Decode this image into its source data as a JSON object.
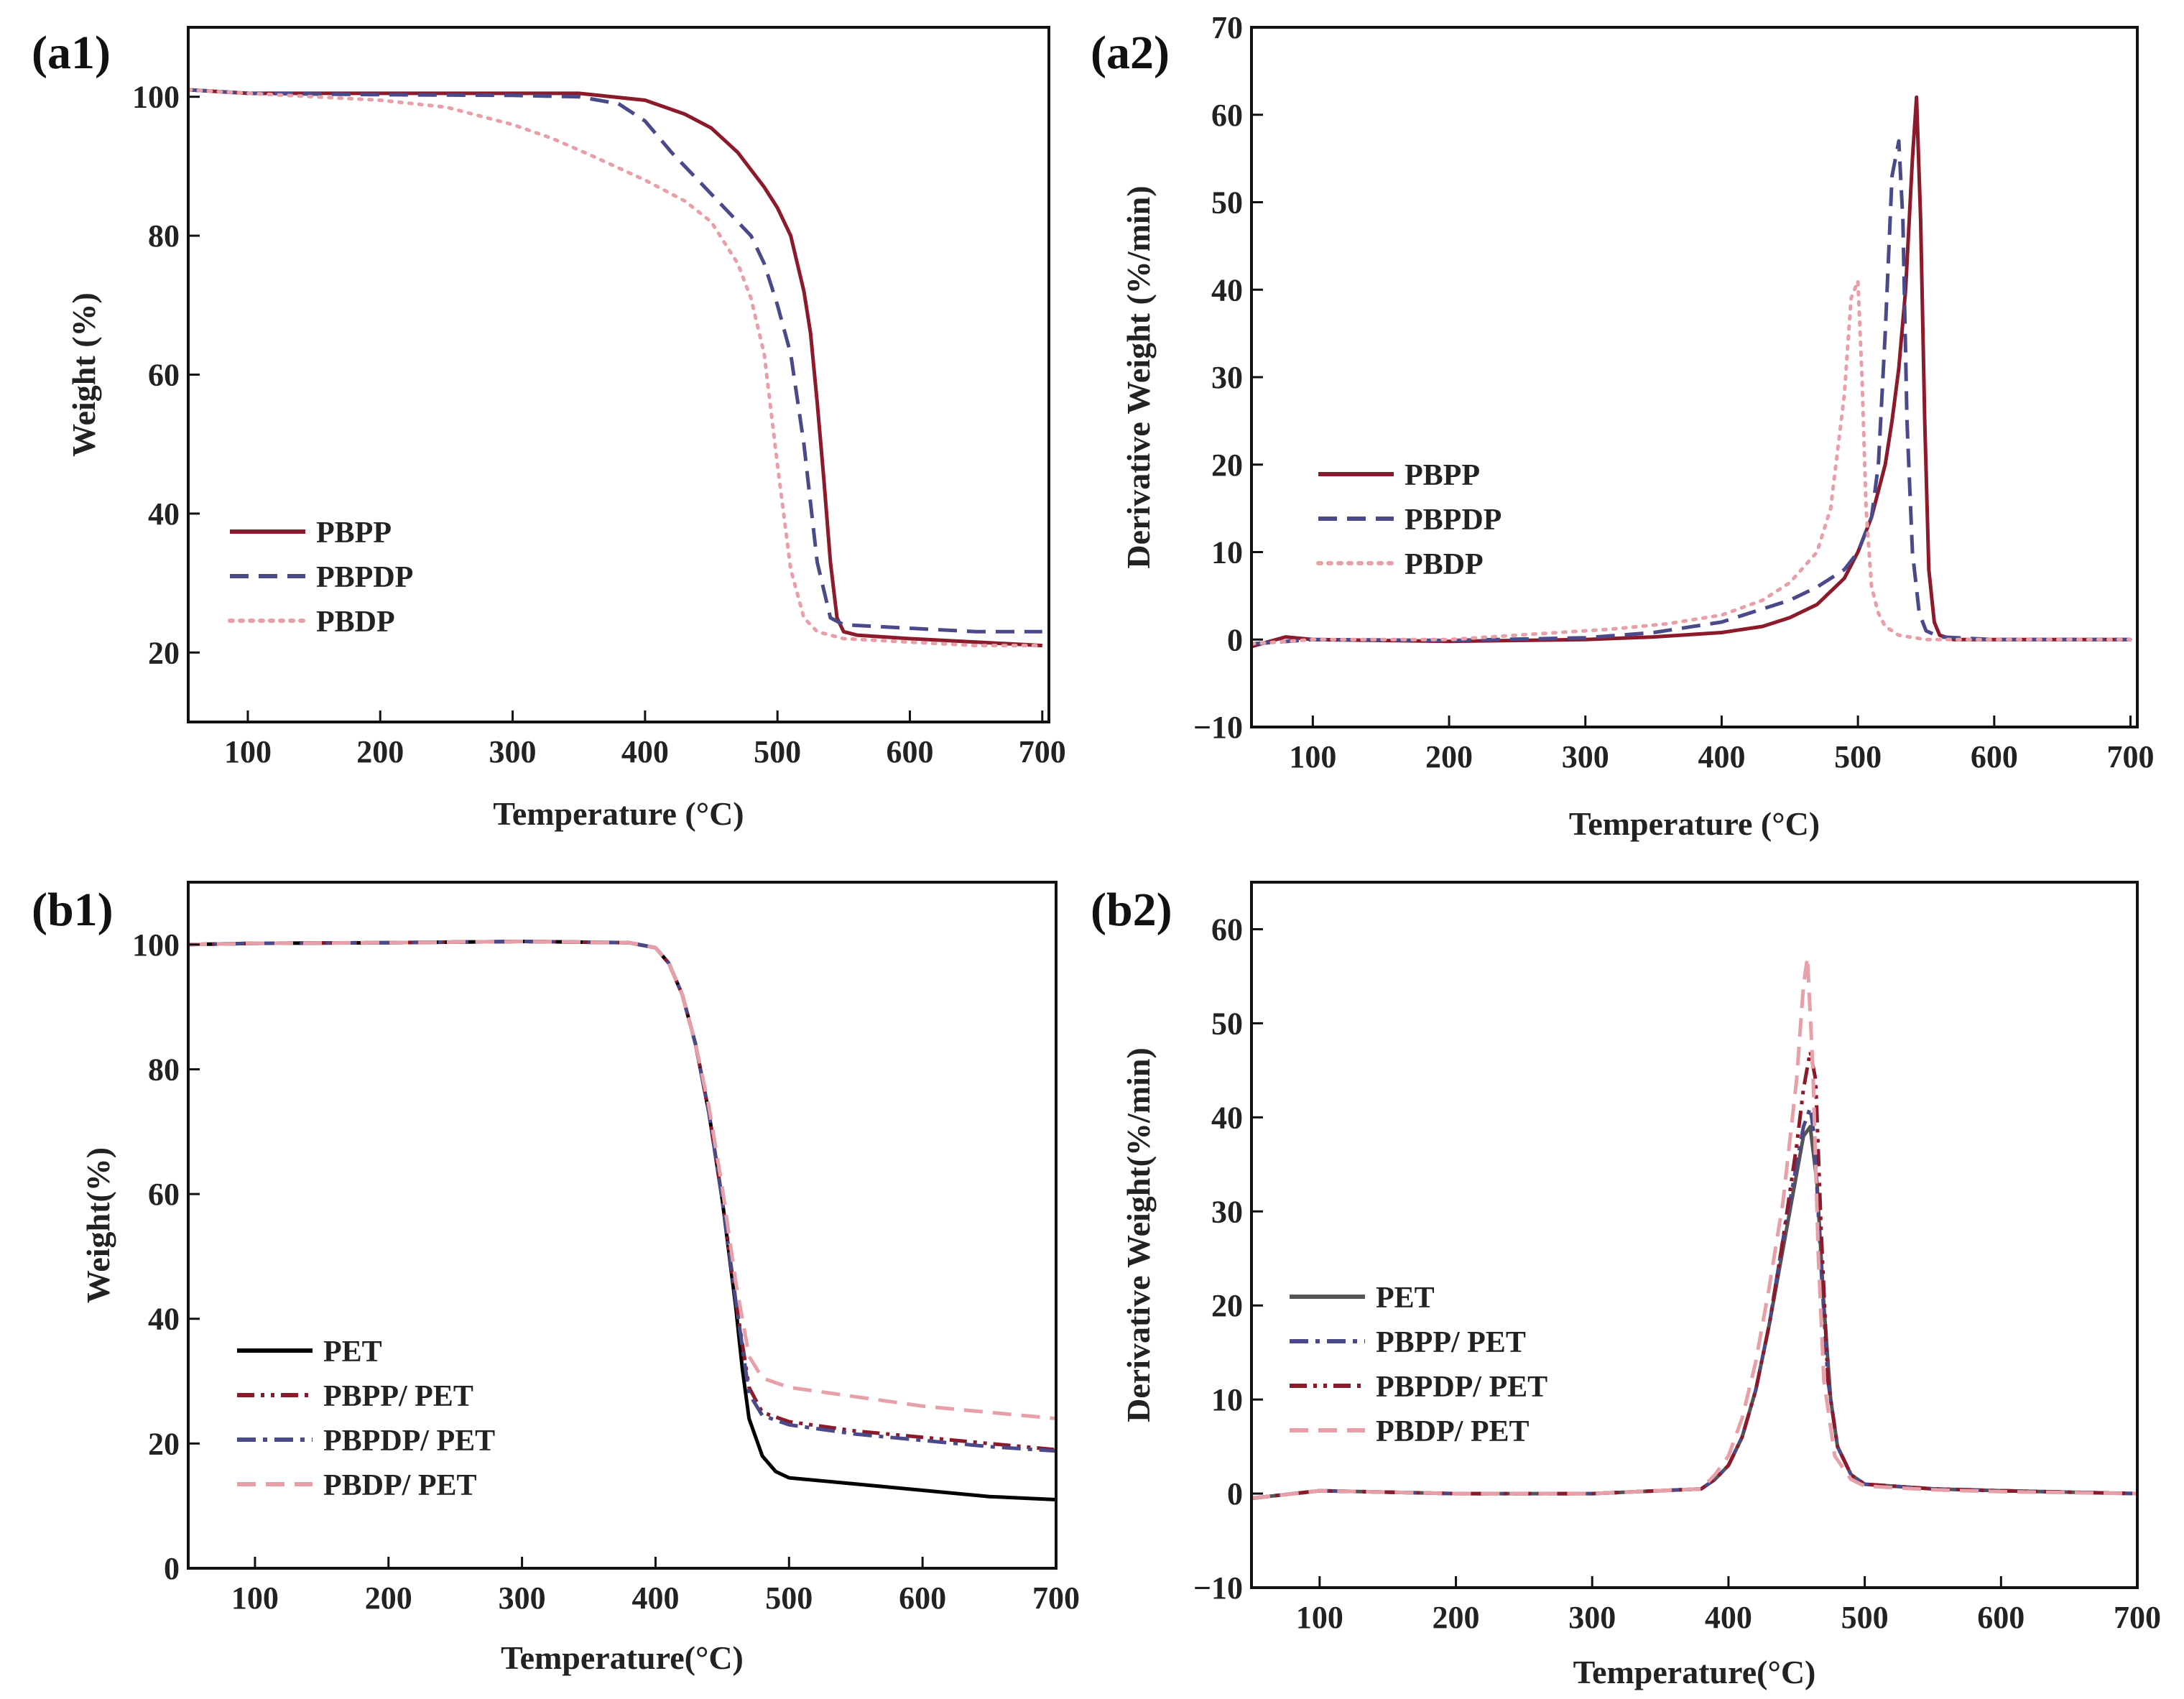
{
  "figure": {
    "chart_data": [
      {
        "id": "a1",
        "panel_label": "(a1)",
        "type": "line",
        "xlabel": "Temperature (°C)",
        "ylabel": "Weight (%)",
        "xlim": [
          55,
          705
        ],
        "ylim": [
          10,
          110
        ],
        "xticks": [
          100,
          200,
          300,
          400,
          500,
          600,
          700
        ],
        "yticks": [
          20,
          40,
          60,
          80,
          100
        ],
        "legend_position": "bottom-left",
        "series": [
          {
            "name": "PBPP",
            "color": "#8b1a2b",
            "dash": "solid",
            "x": [
              55,
              100,
              200,
              300,
              350,
              400,
              430,
              450,
              470,
              490,
              500,
              510,
              520,
              525,
              530,
              535,
              540,
              545,
              550,
              560,
              600,
              650,
              700
            ],
            "y": [
              101,
              100.5,
              100.5,
              100.5,
              100.5,
              99.5,
              97.5,
              95.5,
              92,
              87,
              84,
              80,
              72,
              66,
              56,
              45,
              33,
              25,
              23,
              22.5,
              22,
              21.5,
              21
            ]
          },
          {
            "name": "PBPDP",
            "color": "#4a4a8a",
            "dash": "dashed",
            "x": [
              55,
              100,
              200,
              300,
              350,
              380,
              400,
              420,
              440,
              460,
              480,
              490,
              500,
              510,
              520,
              530,
              540,
              550,
              600,
              650,
              700
            ],
            "y": [
              101,
              100.5,
              100.3,
              100.2,
              100,
              99,
              96.5,
              92,
              88,
              84,
              80,
              76,
              70,
              63,
              50,
              33,
              25,
              24,
              23.5,
              23,
              23
            ]
          },
          {
            "name": "PBDP",
            "color": "#e8a0a8",
            "dash": "dotted",
            "x": [
              55,
              100,
              200,
              250,
              300,
              330,
              360,
              400,
              430,
              450,
              470,
              480,
              490,
              500,
              510,
              520,
              530,
              550,
              600,
              650,
              700
            ],
            "y": [
              101,
              100.5,
              99.5,
              98.5,
              96,
              94,
              91.5,
              88,
              85,
              82,
              76,
              71,
              63,
              47,
              32,
              25,
              23,
              22,
              21.5,
              21,
              21
            ]
          }
        ]
      },
      {
        "id": "a2",
        "panel_label": "(a2)",
        "type": "line",
        "xlabel": "Temperature (°C)",
        "ylabel": "Derivative Weight (%/min)",
        "xlim": [
          55,
          705
        ],
        "ylim": [
          -10,
          70
        ],
        "xticks": [
          100,
          200,
          300,
          400,
          500,
          600,
          700
        ],
        "yticks": [
          -10,
          0,
          10,
          20,
          30,
          40,
          50,
          60,
          70
        ],
        "legend_position": "center-left",
        "series": [
          {
            "name": "PBPP",
            "color": "#8b1a2b",
            "dash": "solid",
            "x": [
              55,
              80,
              100,
              200,
              300,
              350,
              400,
              430,
              450,
              470,
              490,
              500,
              510,
              520,
              525,
              530,
              535,
              540,
              543,
              546,
              549,
              552,
              556,
              560,
              570,
              600,
              700
            ],
            "y": [
              -0.8,
              0.3,
              0,
              -0.2,
              0,
              0.3,
              0.8,
              1.5,
              2.5,
              4,
              7,
              10,
              14,
              20,
              25,
              31,
              40,
              55,
              62,
              48,
              25,
              8,
              2,
              0.5,
              0,
              0,
              0
            ]
          },
          {
            "name": "PBPDP",
            "color": "#4a4a8a",
            "dash": "dashed",
            "x": [
              55,
              100,
              200,
              300,
              350,
              400,
              430,
              450,
              470,
              490,
              500,
              510,
              515,
              520,
              525,
              530,
              533,
              536,
              540,
              545,
              550,
              560,
              600,
              700
            ],
            "y": [
              -0.5,
              0,
              -0.1,
              0.2,
              0.8,
              2,
              3.5,
              4.5,
              6,
              8,
              10,
              14,
              20,
              35,
              53,
              57,
              48,
              25,
              10,
              3,
              1,
              0.3,
              0,
              0
            ]
          },
          {
            "name": "PBDP",
            "color": "#e8a0a8",
            "dash": "dotted",
            "x": [
              55,
              100,
              200,
              280,
              320,
              360,
              400,
              430,
              450,
              470,
              480,
              490,
              495,
              500,
              503,
              506,
              510,
              515,
              520,
              530,
              550,
              600,
              700
            ],
            "y": [
              -0.5,
              0,
              0,
              0.8,
              1.2,
              1.8,
              2.8,
              4.5,
              6.5,
              10,
              15,
              28,
              39,
              41,
              30,
              15,
              6,
              3,
              1.5,
              0.5,
              0,
              0,
              0
            ]
          }
        ]
      },
      {
        "id": "b1",
        "panel_label": "(b1)",
        "type": "line",
        "xlabel": "Temperature(°C)",
        "ylabel": "Weight(%)",
        "xlim": [
          50,
          700
        ],
        "ylim": [
          0,
          110
        ],
        "xticks": [
          100,
          200,
          300,
          400,
          500,
          600,
          700
        ],
        "yticks": [
          0,
          20,
          40,
          60,
          80,
          100
        ],
        "legend_position": "bottom-left",
        "series": [
          {
            "name": "PET",
            "color": "#000000",
            "dash": "solid",
            "x": [
              50,
              100,
              200,
              300,
              380,
              400,
              410,
              420,
              430,
              440,
              450,
              460,
              465,
              470,
              480,
              490,
              500,
              550,
              600,
              650,
              700
            ],
            "y": [
              100,
              100.2,
              100.3,
              100.5,
              100.3,
              99.5,
              97,
              92,
              84,
              73,
              59,
              42,
              32,
              24,
              18,
              15.5,
              14.5,
              13.5,
              12.5,
              11.5,
              11
            ]
          },
          {
            "name": "PBPP/ PET",
            "color": "#8b1a2b",
            "dash": "dashdotdot",
            "x": [
              50,
              100,
              200,
              300,
              380,
              400,
              410,
              420,
              430,
              440,
              450,
              460,
              470,
              480,
              500,
              550,
              600,
              650,
              700
            ],
            "y": [
              100,
              100.2,
              100.3,
              100.5,
              100.3,
              99.5,
              97,
              92,
              84,
              73,
              59,
              43,
              29,
              25,
              23.5,
              22,
              21,
              20,
              19
            ]
          },
          {
            "name": "PBPDP/ PET",
            "color": "#4a4a8a",
            "dash": "dashdot",
            "x": [
              50,
              100,
              200,
              300,
              380,
              400,
              410,
              420,
              430,
              440,
              450,
              460,
              470,
              480,
              500,
              550,
              600,
              650,
              700
            ],
            "y": [
              100,
              100.2,
              100.3,
              100.5,
              100.3,
              99.5,
              97,
              92,
              84,
              73,
              59,
              43,
              28,
              24.5,
              23,
              21.5,
              20.5,
              19.5,
              18.8
            ]
          },
          {
            "name": "PBDP/ PET",
            "color": "#e8a0a8",
            "dash": "dashed",
            "x": [
              50,
              100,
              200,
              300,
              380,
              400,
              410,
              420,
              430,
              440,
              450,
              460,
              470,
              480,
              500,
              550,
              600,
              650,
              700
            ],
            "y": [
              100,
              100.2,
              100.3,
              100.5,
              100.3,
              99.5,
              97,
              92,
              84,
              74,
              61,
              46,
              34,
              30.5,
              29,
              27.5,
              26,
              25,
              24
            ]
          }
        ]
      },
      {
        "id": "b2",
        "panel_label": "(b2)",
        "type": "line",
        "xlabel": "Temperature(°C)",
        "ylabel": "Derivative Weight(%/min)",
        "xlim": [
          50,
          700
        ],
        "ylim": [
          -10,
          65
        ],
        "xticks": [
          100,
          200,
          300,
          400,
          500,
          600,
          700
        ],
        "yticks": [
          -10,
          0,
          10,
          20,
          30,
          40,
          50,
          60
        ],
        "legend_position": "center-left",
        "series": [
          {
            "name": "PET",
            "color": "#555555",
            "dash": "solid",
            "x": [
              50,
              100,
              200,
              300,
              380,
              390,
              400,
              410,
              420,
              430,
              440,
              450,
              455,
              460,
              465,
              470,
              475,
              480,
              490,
              500,
              550,
              600,
              700
            ],
            "y": [
              -0.5,
              0.3,
              0,
              0,
              0.5,
              1.5,
              3,
              6,
              11,
              18,
              26,
              34,
              38,
              39,
              33,
              20,
              10,
              5,
              2,
              1,
              0.5,
              0.3,
              0
            ]
          },
          {
            "name": "PBPP/ PET",
            "color": "#4a4a8a",
            "dash": "dashdot",
            "x": [
              50,
              100,
              200,
              300,
              380,
              390,
              400,
              410,
              420,
              430,
              440,
              450,
              455,
              460,
              463,
              468,
              473,
              480,
              490,
              500,
              550,
              600,
              700
            ],
            "y": [
              -0.5,
              0.3,
              0,
              0,
              0.5,
              1.5,
              3,
              6,
              11,
              18,
              27,
              35,
              39,
              41,
              38,
              24,
              12,
              5,
              2,
              1,
              0.5,
              0.3,
              0
            ]
          },
          {
            "name": "PBPDP/ PET",
            "color": "#8b1a2b",
            "dash": "dashdotdot",
            "x": [
              50,
              100,
              200,
              300,
              380,
              390,
              400,
              410,
              420,
              430,
              440,
              450,
              455,
              460,
              464,
              468,
              473,
              480,
              490,
              500,
              550,
              600,
              700
            ],
            "y": [
              -0.5,
              0.3,
              0,
              0,
              0.5,
              1.5,
              3,
              6,
              11,
              18,
              27,
              37,
              43,
              47,
              44,
              28,
              12,
              5,
              2,
              1,
              0.5,
              0.3,
              0
            ]
          },
          {
            "name": "PBDP/ PET",
            "color": "#e8a0a8",
            "dash": "dashed",
            "x": [
              50,
              100,
              200,
              300,
              380,
              390,
              400,
              410,
              420,
              430,
              440,
              450,
              455,
              458,
              462,
              466,
              470,
              478,
              490,
              500,
              550,
              600,
              700
            ],
            "y": [
              -0.5,
              0.3,
              0,
              0,
              0.5,
              2,
              4,
              8,
              14,
              22,
              31,
              44,
              54,
              57,
              45,
              25,
              12,
              4,
              1.5,
              0.8,
              0.4,
              0.2,
              0
            ]
          }
        ]
      }
    ]
  }
}
